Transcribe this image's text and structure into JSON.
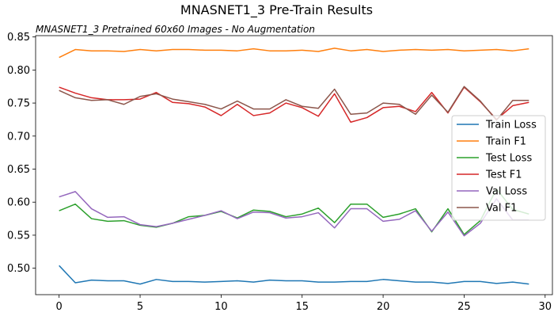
{
  "chart_data": {
    "type": "line",
    "title": "MNASNET1_3 Pre-Train Results",
    "subtitle": "MNASNET1_3 Pretrained 60x60 Images - No Augmentation",
    "xlabel": "",
    "ylabel": "",
    "xlim": [
      -1.45,
      30.45
    ],
    "ylim": [
      0.46,
      0.852
    ],
    "xticks": [
      0,
      5,
      10,
      15,
      20,
      25,
      30
    ],
    "yticks": [
      0.5,
      0.55,
      0.6,
      0.65,
      0.7,
      0.75,
      0.8,
      0.85
    ],
    "grid": false,
    "legend_position": "right",
    "x": [
      0,
      1,
      2,
      3,
      4,
      5,
      6,
      7,
      8,
      9,
      10,
      11,
      12,
      13,
      14,
      15,
      16,
      17,
      18,
      19,
      20,
      21,
      22,
      23,
      24,
      25,
      26,
      27,
      28,
      29
    ],
    "series": [
      {
        "name": "Train Loss",
        "color": "#1f77b4",
        "values": [
          0.504,
          0.478,
          0.482,
          0.481,
          0.481,
          0.476,
          0.483,
          0.48,
          0.48,
          0.479,
          0.48,
          0.481,
          0.479,
          0.482,
          0.481,
          0.481,
          0.479,
          0.479,
          0.48,
          0.48,
          0.483,
          0.481,
          0.479,
          0.479,
          0.477,
          0.48,
          0.48,
          0.477,
          0.479,
          0.476
        ]
      },
      {
        "name": "Train F1",
        "color": "#ff7f0e",
        "values": [
          0.819,
          0.831,
          0.829,
          0.829,
          0.828,
          0.831,
          0.829,
          0.831,
          0.831,
          0.83,
          0.83,
          0.829,
          0.832,
          0.829,
          0.829,
          0.83,
          0.828,
          0.833,
          0.829,
          0.831,
          0.828,
          0.83,
          0.831,
          0.83,
          0.831,
          0.829,
          0.83,
          0.831,
          0.829,
          0.832
        ]
      },
      {
        "name": "Test Loss",
        "color": "#2ca02c",
        "values": [
          0.587,
          0.597,
          0.575,
          0.571,
          0.572,
          0.565,
          0.562,
          0.568,
          0.578,
          0.58,
          0.586,
          0.576,
          0.588,
          0.586,
          0.578,
          0.582,
          0.591,
          0.569,
          0.597,
          0.597,
          0.577,
          0.582,
          0.59,
          0.555,
          0.59,
          0.551,
          0.572,
          0.62,
          0.589,
          0.582
        ]
      },
      {
        "name": "Test F1",
        "color": "#d62728",
        "values": [
          0.774,
          0.765,
          0.758,
          0.755,
          0.755,
          0.756,
          0.766,
          0.751,
          0.749,
          0.744,
          0.731,
          0.748,
          0.731,
          0.735,
          0.75,
          0.743,
          0.73,
          0.764,
          0.721,
          0.728,
          0.743,
          0.745,
          0.737,
          0.766,
          0.735,
          0.774,
          0.752,
          0.725,
          0.746,
          0.751
        ]
      },
      {
        "name": "Val Loss",
        "color": "#9467bd",
        "values": [
          0.608,
          0.616,
          0.59,
          0.577,
          0.578,
          0.566,
          0.563,
          0.568,
          0.574,
          0.58,
          0.587,
          0.575,
          0.585,
          0.584,
          0.576,
          0.578,
          0.584,
          0.561,
          0.59,
          0.59,
          0.571,
          0.574,
          0.587,
          0.556,
          0.585,
          0.549,
          0.568,
          0.605,
          0.573,
          0.573
        ]
      },
      {
        "name": "Val F1",
        "color": "#8c564b",
        "values": [
          0.769,
          0.758,
          0.754,
          0.755,
          0.748,
          0.76,
          0.764,
          0.756,
          0.752,
          0.748,
          0.741,
          0.753,
          0.741,
          0.741,
          0.755,
          0.745,
          0.742,
          0.771,
          0.733,
          0.735,
          0.75,
          0.748,
          0.733,
          0.762,
          0.736,
          0.775,
          0.753,
          0.724,
          0.754,
          0.754
        ]
      }
    ]
  }
}
